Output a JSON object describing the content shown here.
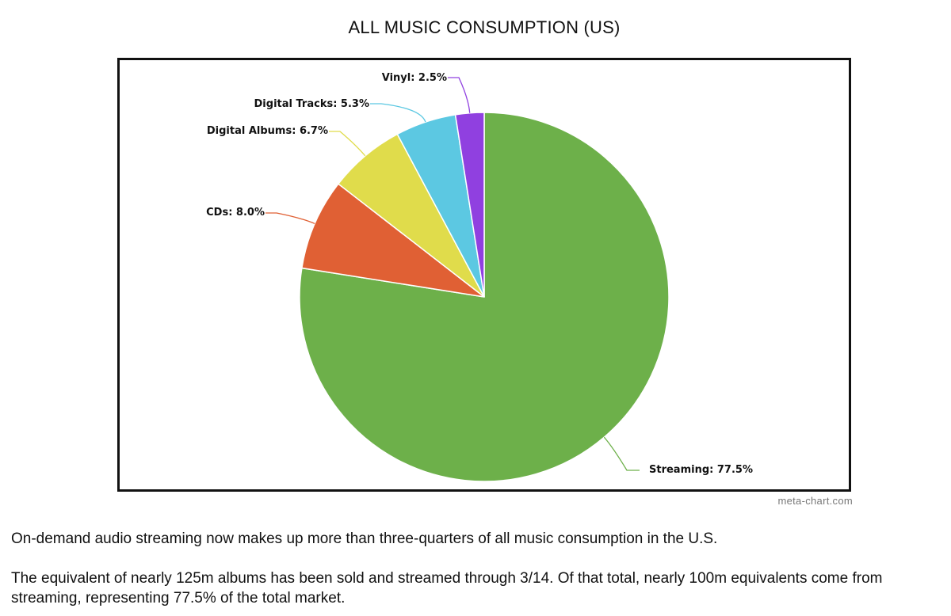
{
  "chart_data": {
    "type": "pie",
    "title": "ALL MUSIC CONSUMPTION (US)",
    "slices": [
      {
        "label": "Streaming: 77.5%",
        "name": "Streaming",
        "value": 77.5,
        "color": "#6db04a"
      },
      {
        "label": "CDs: 8.0%",
        "name": "CDs",
        "value": 8.0,
        "color": "#e06034"
      },
      {
        "label": "Digital Albums: 6.7%",
        "name": "Digital Albums",
        "value": 6.7,
        "color": "#e0dc4b"
      },
      {
        "label": "Digital Tracks: 5.3%",
        "name": "Digital Tracks",
        "value": 5.3,
        "color": "#5cc8e2"
      },
      {
        "label": "Vinyl: 2.5%",
        "name": "Vinyl",
        "value": 2.5,
        "color": "#9040e0"
      }
    ]
  },
  "credit": "meta-chart.com",
  "captions": [
    "On-demand audio streaming now makes up more than three-quarters of all music consumption in the U.S.",
    "The equivalent of nearly 125m albums has been sold and streamed through 3/14. Of that total, nearly 100m equivalents come from streaming, representing 77.5% of the total market."
  ]
}
